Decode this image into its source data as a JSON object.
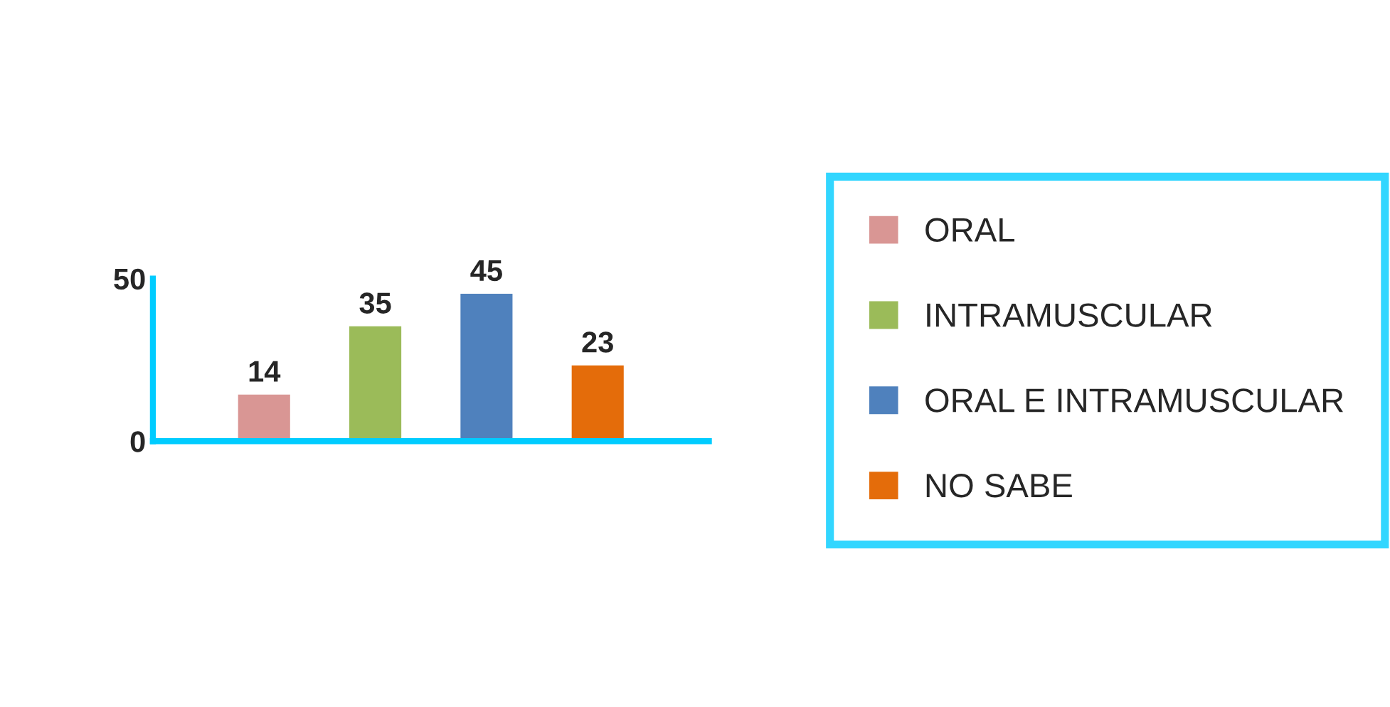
{
  "chart_data": {
    "type": "bar",
    "categories": [
      null
    ],
    "series": [
      {
        "name": "ORAL",
        "color": "#d99694",
        "values": [
          14
        ]
      },
      {
        "name": "INTRAMUSCULAR",
        "color": "#9bbb59",
        "values": [
          35
        ]
      },
      {
        "name": "ORAL E INTRAMUSCULAR",
        "color": "#4f81bd",
        "values": [
          45
        ]
      },
      {
        "name": "NO SABE",
        "color": "#e46c0a",
        "values": [
          23
        ]
      }
    ],
    "ylim": [
      0,
      50
    ],
    "yticks": [
      0,
      50
    ],
    "data_labels": true,
    "grid": false,
    "legend": "right"
  }
}
